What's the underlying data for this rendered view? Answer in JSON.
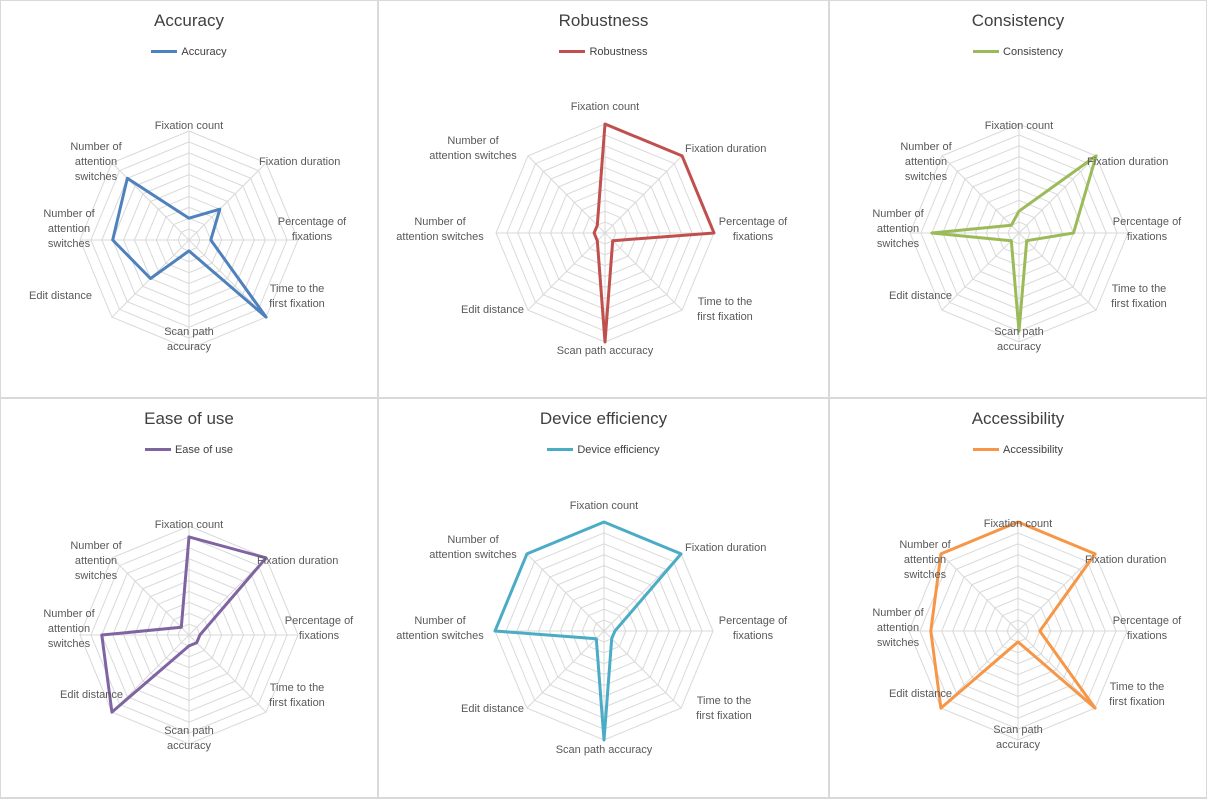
{
  "chart_data": [
    {
      "type": "radar",
      "title": "Accuracy",
      "series": [
        {
          "name": "Accuracy",
          "values": [
            2,
            4,
            2,
            10,
            1,
            5,
            7,
            8
          ],
          "color": "#4f81bd"
        }
      ],
      "categories": [
        "Fixation count",
        "Fixation duration",
        "Percentage of fixations",
        "Time to the first fixation",
        "Scan path accuracy",
        "Edit distance",
        "Number of attention switches",
        "Number of attention switches"
      ],
      "rmax": 10,
      "grid": true,
      "legend": "top"
    },
    {
      "type": "radar",
      "title": "Robustness",
      "series": [
        {
          "name": "Robustness",
          "values": [
            10,
            10,
            10,
            1,
            10,
            1,
            1,
            1
          ],
          "color": "#c0504d"
        }
      ],
      "categories": [
        "Fixation count",
        "Fixation duration",
        "Percentage of fixations",
        "Time to the first fixation",
        "Scan path accuracy",
        "Edit distance",
        "Number of attention switches",
        "Number of attention switches"
      ],
      "rmax": 10,
      "grid": true,
      "legend": "top"
    },
    {
      "type": "radar",
      "title": "Consistency",
      "series": [
        {
          "name": "Consistency",
          "values": [
            2,
            10,
            5,
            1,
            9,
            1,
            8,
            1
          ],
          "color": "#9bbb59"
        }
      ],
      "categories": [
        "Fixation count",
        "Fixation duration",
        "Percentage of fixations",
        "Time to the first fixation",
        "Scan path accuracy",
        "Edit distance",
        "Number of attention switches",
        "Number of attention switches"
      ],
      "rmax": 10,
      "grid": true,
      "legend": "top"
    },
    {
      "type": "radar",
      "title": "Ease of use",
      "series": [
        {
          "name": "Ease of use",
          "values": [
            9,
            10,
            1,
            1,
            1,
            10,
            8,
            1
          ],
          "color": "#8064a2"
        }
      ],
      "categories": [
        "Fixation count",
        "Fixation duration",
        "Percentage of fixations",
        "Time to the first fixation",
        "Scan path accuracy",
        "Edit distance",
        "Number of attention switches",
        "Number of attention switches"
      ],
      "rmax": 10,
      "grid": true,
      "legend": "top"
    },
    {
      "type": "radar",
      "title": "Device efficiency",
      "series": [
        {
          "name": "Device efficiency",
          "values": [
            10,
            10,
            1,
            1,
            10,
            1,
            10,
            10
          ],
          "color": "#4bacc6"
        }
      ],
      "categories": [
        "Fixation count",
        "Fixation duration",
        "Percentage of fixations",
        "Time to the first fixation",
        "Scan path accuracy",
        "Edit distance",
        "Number of attention switches",
        "Number of attention switches"
      ],
      "rmax": 10,
      "grid": true,
      "legend": "top"
    },
    {
      "type": "radar",
      "title": "Accessibility",
      "series": [
        {
          "name": "Accessibility",
          "values": [
            10,
            10,
            2,
            10,
            1,
            10,
            8,
            10
          ],
          "color": "#f79646"
        }
      ],
      "categories": [
        "Fixation count",
        "Fixation duration",
        "Percentage of fixations",
        "Time to the first fixation",
        "Scan path accuracy",
        "Edit distance",
        "Number of attention switches",
        "Number of attention switches"
      ],
      "rmax": 10,
      "grid": true,
      "legend": "top"
    }
  ]
}
